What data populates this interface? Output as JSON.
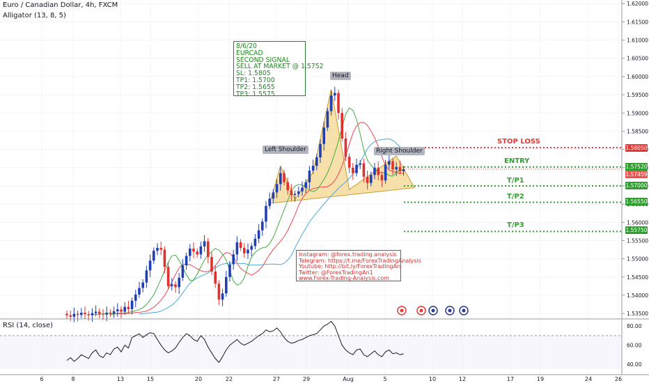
{
  "header": {
    "title": "Euro / Canadian Dollar, 4h, FXCM",
    "indicator": "Alligator (13, 8, 5)",
    "rsi_title": "RSI (14, close)"
  },
  "signal_box": {
    "lines": [
      "8/6/20",
      "EURCAD",
      "SECOND SIGNAL",
      "SELL AT MARKET @ 1.5752",
      "SL: 1.5805",
      "TP1: 1.5700",
      "TP2: 1.5655",
      "TP3: 1.5575"
    ]
  },
  "contact_box": {
    "lines": [
      "Instagram: @forex.trading.analysis",
      "Telegram: https://t.me/ForexTradingAnalysis",
      "Youtube: http://bit.ly/ForexTradingAn",
      "Twitter: @ForexTradingAn1",
      "www.Forex-Trading-Analysis.com"
    ]
  },
  "pattern_labels": {
    "left": "Left Shoulder",
    "head": "Head",
    "right": "Right Shoulder"
  },
  "levels": [
    {
      "label": "STOP LOSS",
      "price": 1.5805,
      "color": "#e53935",
      "tag": "1.58050"
    },
    {
      "label": "ENTRY",
      "price": 1.5752,
      "color": "#2e9e2e",
      "tag": "1.57520"
    },
    {
      "label": "T/P1",
      "price": 1.57,
      "color": "#2e9e2e",
      "tag": "1.57000"
    },
    {
      "label": "T/P2",
      "price": 1.5655,
      "color": "#2e9e2e",
      "tag": "1.56550"
    },
    {
      "label": "T/P3",
      "price": 1.5575,
      "color": "#2e9e2e",
      "tag": "1.55750"
    }
  ],
  "current_price": {
    "price": 1.5746,
    "tag": "1.57459",
    "color": "#ef5350"
  },
  "colors": {
    "up": "#1f3fb3",
    "down": "#e0312f",
    "jaw": "#4aa8d8",
    "teeth": "#f04452",
    "lips": "#3fae3f",
    "pattern_fill": "#f2cf7c",
    "pattern_stroke": "#c89b2e"
  },
  "chart_data": {
    "type": "candlestick",
    "y_axis": {
      "min": 1.5335,
      "max": 1.621,
      "ticks": [
        1.535,
        1.54,
        1.545,
        1.55,
        1.555,
        1.56,
        1.565,
        1.57,
        1.575,
        1.58,
        1.585,
        1.59,
        1.595,
        1.6,
        1.605,
        1.61,
        1.615,
        1.62
      ]
    },
    "x_ticks": [
      "6",
      "8",
      "13",
      "15",
      "20",
      "22",
      "27",
      "29",
      "Aug",
      "5",
      "10",
      "12",
      "17",
      "19",
      "24",
      "26"
    ],
    "closes": [
      1.5345,
      1.5341,
      1.5349,
      1.5346,
      1.5352,
      1.5348,
      1.5345,
      1.5351,
      1.5355,
      1.5349,
      1.5347,
      1.5352,
      1.535,
      1.5356,
      1.5361,
      1.5355,
      1.5368,
      1.5362,
      1.5385,
      1.5402,
      1.542,
      1.5435,
      1.5468,
      1.5495,
      1.5522,
      1.553,
      1.5525,
      1.5478,
      1.5425,
      1.543,
      1.5422,
      1.5448,
      1.5482,
      1.5508,
      1.5528,
      1.552,
      1.5512,
      1.5534,
      1.5548,
      1.5505,
      1.5465,
      1.5432,
      1.5388,
      1.5405,
      1.545,
      1.5485,
      1.5512,
      1.5545,
      1.553,
      1.5515,
      1.5525,
      1.5535,
      1.5555,
      1.5578,
      1.5602,
      1.5645,
      1.5665,
      1.5682,
      1.5705,
      1.5735,
      1.571,
      1.5688,
      1.5675,
      1.5678,
      1.5685,
      1.5695,
      1.571,
      1.5742,
      1.5755,
      1.5778,
      1.5815,
      1.586,
      1.5905,
      1.5948,
      1.5955,
      1.59,
      1.583,
      1.578,
      1.575,
      1.5735,
      1.5758,
      1.5762,
      1.5725,
      1.5708,
      1.573,
      1.575,
      1.573,
      1.5715,
      1.5758,
      1.5768,
      1.5745,
      1.5752,
      1.574,
      1.5746
    ],
    "rsi": {
      "min": 35,
      "max": 86,
      "ticks": [
        40,
        60,
        80
      ],
      "values": [
        44,
        47,
        43,
        46,
        50,
        48,
        46,
        52,
        55,
        49,
        47,
        52,
        50,
        56,
        58,
        53,
        60,
        57,
        68,
        70,
        72,
        68,
        71,
        73,
        72,
        66,
        60,
        55,
        52,
        54,
        57,
        63,
        68,
        72,
        70,
        66,
        64,
        70,
        66,
        58,
        52,
        46,
        42,
        48,
        55,
        60,
        63,
        66,
        62,
        60,
        62,
        64,
        67,
        70,
        72,
        76,
        74,
        75,
        78,
        74,
        68,
        64,
        62,
        63,
        65,
        66,
        68,
        70,
        71,
        72,
        76,
        80,
        82,
        85,
        80,
        70,
        60,
        55,
        52,
        50,
        55,
        56,
        50,
        48,
        51,
        54,
        50,
        48,
        53,
        55,
        51,
        52,
        50,
        51
      ]
    }
  }
}
